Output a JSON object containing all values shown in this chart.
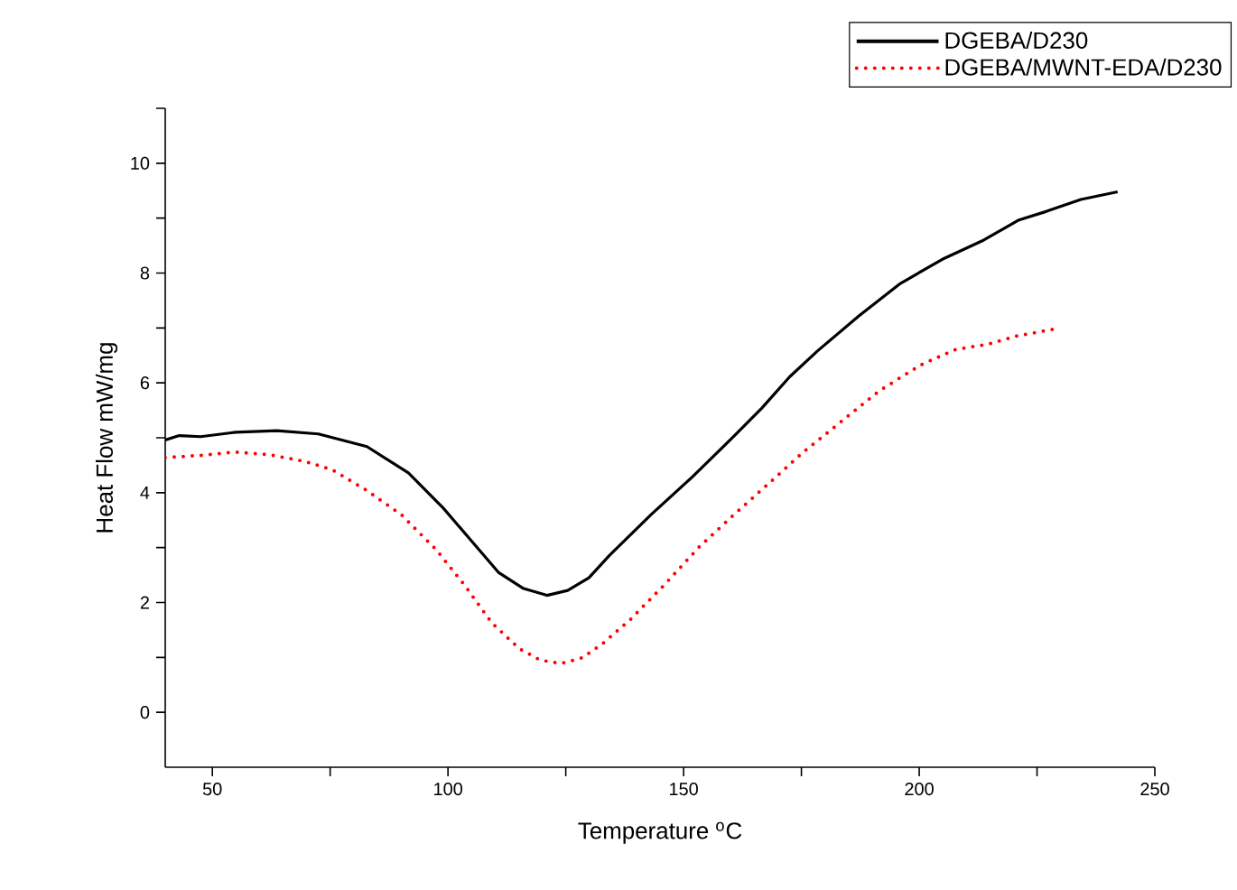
{
  "chart_data": {
    "type": "line",
    "xlabel": "Temperature $^{o}$C",
    "ylabel": "Heat Flow mW/mg",
    "xlim": [
      40,
      250
    ],
    "ylim": [
      -1,
      11
    ],
    "xticks": [
      50,
      {
        "value": 75,
        "label": null
      },
      100,
      {
        "value": 125,
        "label": null
      },
      150,
      {
        "value": 175,
        "label": null
      },
      200,
      {
        "value": 225,
        "label": null
      },
      250
    ],
    "yticks": [
      0,
      {
        "value": 1,
        "label": null
      },
      2,
      {
        "value": 3,
        "label": null
      },
      4,
      {
        "value": 5,
        "label": null
      },
      6,
      {
        "value": 7,
        "label": null
      },
      8,
      {
        "value": 9,
        "label": null
      },
      10,
      {
        "value": 11,
        "label": null
      }
    ],
    "grid": false,
    "legend": "top right",
    "marker": "none",
    "series": [
      {
        "name": "DGEBA/D230",
        "color": "#000000",
        "line_style": "solid",
        "x": [
          40,
          43,
          47.5,
          54.9,
          63.7,
          72.5,
          82.8,
          91.6,
          99,
          104.9,
          110.7,
          115.9,
          121,
          125.4,
          129.9,
          134.3,
          143.1,
          151.9,
          160.7,
          166.6,
          172.5,
          178.4,
          187.2,
          196,
          204.9,
          213.7,
          221,
          226.9,
          234.3,
          242.1
        ],
        "values": [
          4.96,
          5.04,
          5.02,
          5.1,
          5.13,
          5.07,
          4.84,
          4.36,
          3.72,
          3.13,
          2.55,
          2.26,
          2.13,
          2.22,
          2.45,
          2.86,
          3.6,
          4.29,
          5.03,
          5.54,
          6.11,
          6.58,
          7.22,
          7.81,
          8.25,
          8.6,
          8.96,
          9.12,
          9.34,
          9.48
        ]
      },
      {
        "name": "DGEBA/MWNT-EDA/D230",
        "color": "#ff0000",
        "line_style": "dotted",
        "x": [
          40,
          47.5,
          54.9,
          62.2,
          69.6,
          75.4,
          82.8,
          90.1,
          97.5,
          103.4,
          109.3,
          115.1,
          119.6,
          124,
          128.4,
          132.8,
          138.7,
          146,
          153.4,
          160.7,
          168.1,
          175.4,
          182.8,
          191.6,
          200.4,
          207.8,
          214.4,
          221,
          228.8
        ],
        "values": [
          4.64,
          4.68,
          4.74,
          4.69,
          4.57,
          4.42,
          4.04,
          3.6,
          2.96,
          2.33,
          1.63,
          1.16,
          0.95,
          0.89,
          0.99,
          1.25,
          1.69,
          2.33,
          3.02,
          3.6,
          4.17,
          4.74,
          5.25,
          5.86,
          6.33,
          6.61,
          6.7,
          6.86,
          6.98
        ]
      }
    ]
  }
}
